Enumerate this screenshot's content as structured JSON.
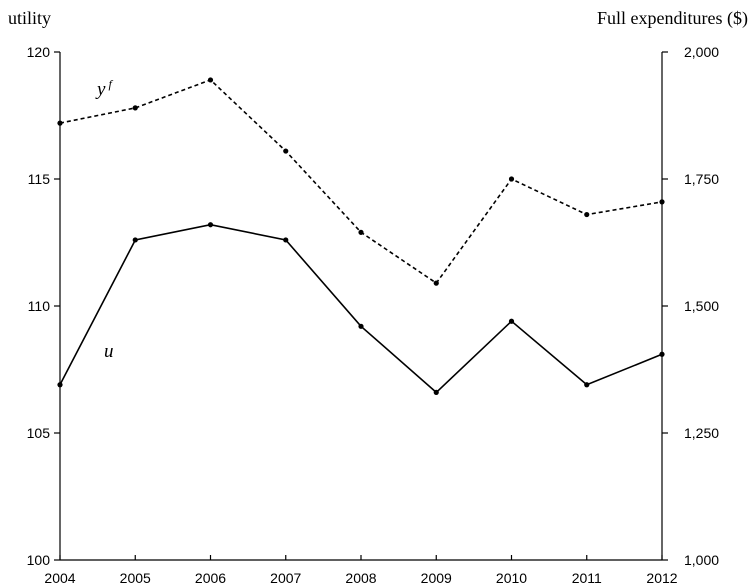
{
  "chart_data": {
    "type": "line",
    "x": [
      "2004",
      "2005",
      "2006",
      "2007",
      "2008",
      "2009",
      "2010",
      "2011",
      "2012"
    ],
    "left_axis": {
      "label": "utility",
      "ylim": [
        100,
        120
      ],
      "ticks": [
        "100",
        "105",
        "110",
        "115",
        "120"
      ]
    },
    "right_axis": {
      "label": "Full expenditures ($)",
      "ylim": [
        1000,
        2000
      ],
      "ticks": [
        "1,000",
        "1,250",
        "1,500",
        "1,750",
        "2,000"
      ]
    },
    "series": [
      {
        "name": "u",
        "axis": "left",
        "style": "solid",
        "values": [
          106.9,
          112.6,
          113.2,
          112.6,
          109.2,
          106.6,
          109.4,
          106.9,
          108.1
        ]
      },
      {
        "name": "y",
        "name_superscript": "f",
        "axis": "right",
        "style": "dotted",
        "values": [
          1860,
          1890,
          1945,
          1805,
          1645,
          1545,
          1750,
          1680,
          1705
        ]
      }
    ],
    "grid": false,
    "legend": "inline labels"
  }
}
